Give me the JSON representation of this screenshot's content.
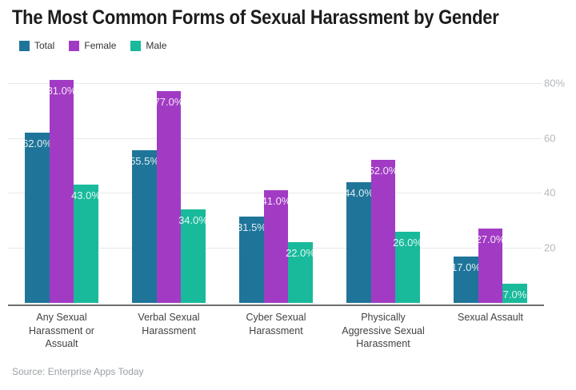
{
  "title": "The Most Common Forms of Sexual Harassment by Gender",
  "source_note": "Source: Enterprise Apps Today",
  "colors": {
    "total": "#1f7599",
    "female": "#a23bc4",
    "male": "#18ba9b",
    "gridline": "#e8e8ea",
    "axis_line": "#6e6e6e",
    "tick_text": "#b4b8bc",
    "category_text": "#424242",
    "title_text": "#1d1d1f",
    "bar_label_text": "#ffffff"
  },
  "chart_data": {
    "type": "bar",
    "title": "The Most Common Forms of Sexual Harassment by Gender",
    "categories": [
      "Any Sexual Harassment or Assualt",
      "Verbal Sexual Harassment",
      "Cyber Sexual Harassment",
      "Physically Aggressive Sexual Harassment",
      "Sexual Assault"
    ],
    "series": [
      {
        "name": "Total",
        "color_key": "total",
        "values": [
          62.0,
          55.5,
          31.5,
          44.0,
          17.0
        ]
      },
      {
        "name": "Female",
        "color_key": "female",
        "values": [
          81.0,
          77.0,
          41.0,
          52.0,
          27.0
        ]
      },
      {
        "name": "Male",
        "color_key": "male",
        "values": [
          43.0,
          34.0,
          22.0,
          26.0,
          7.0
        ]
      }
    ],
    "value_suffix": "%",
    "label_decimals": 1,
    "y_ticks": [
      {
        "value": 80,
        "label": "80%"
      },
      {
        "value": 60,
        "label": "60"
      },
      {
        "value": 40,
        "label": "40"
      },
      {
        "value": 20,
        "label": "20"
      }
    ],
    "ylim": [
      0,
      85.5
    ],
    "grid": true,
    "axis_side": "right",
    "legend_position": "top-left",
    "bar_labels_visible": true
  }
}
